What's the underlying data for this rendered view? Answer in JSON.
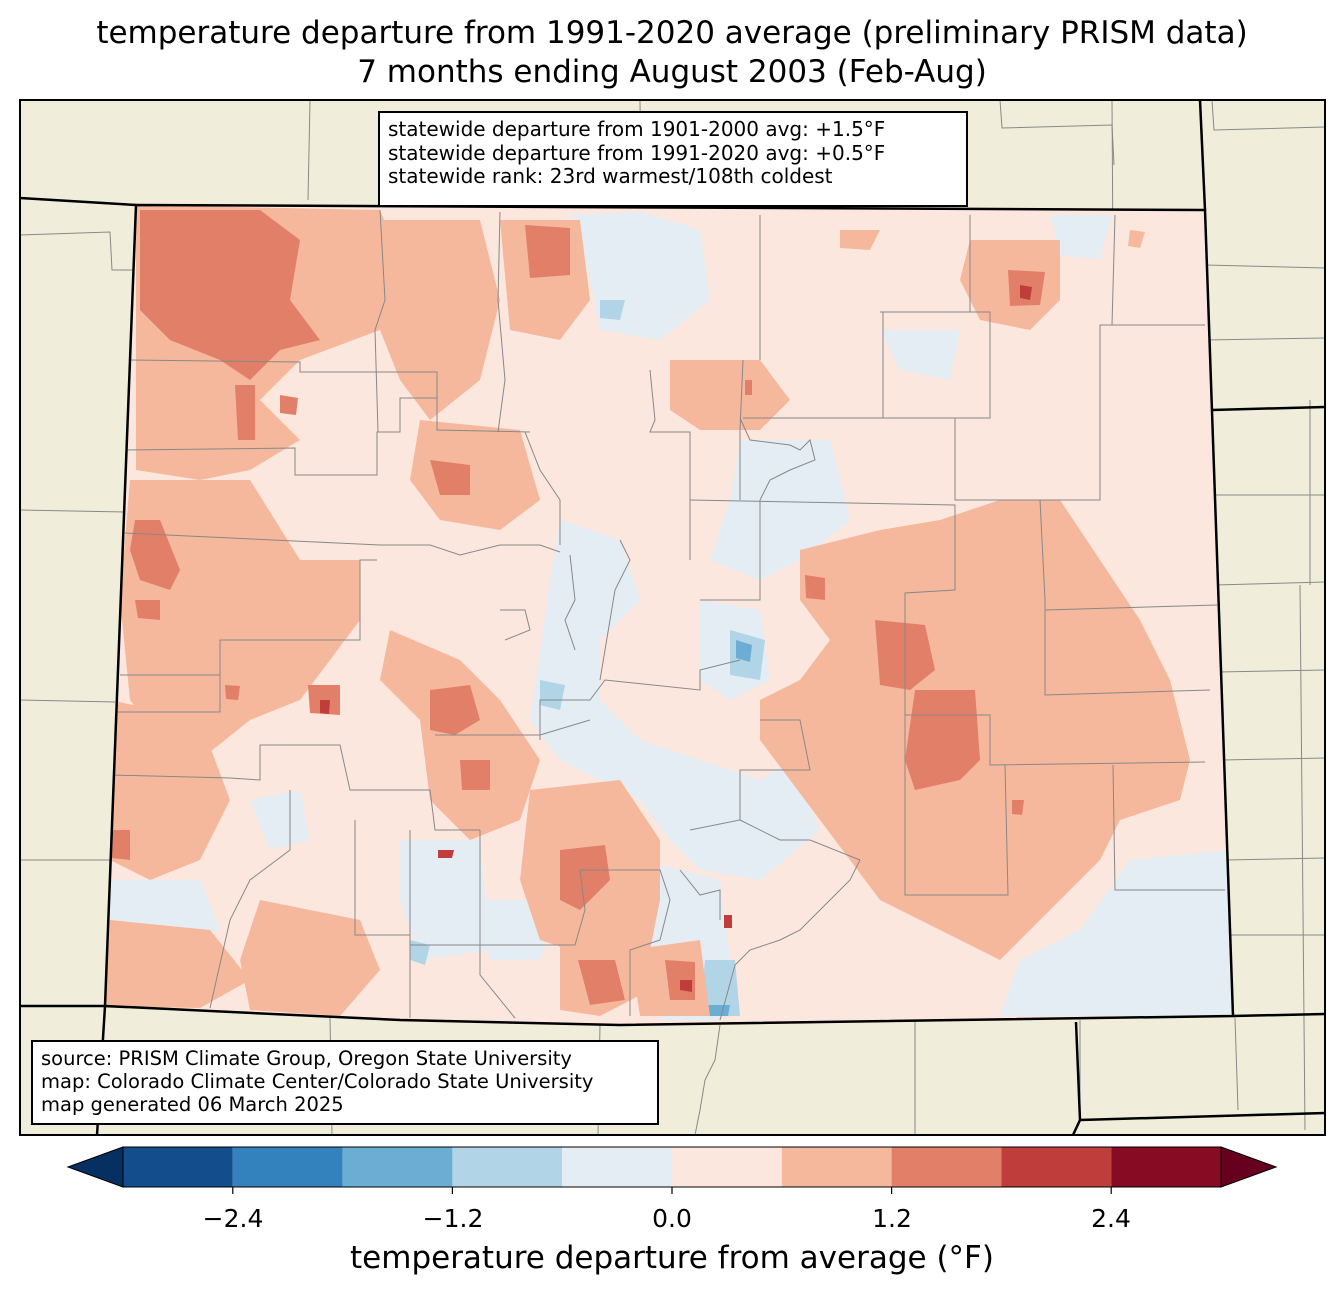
{
  "title": {
    "line1": "temperature departure from 1991-2020 average (preliminary PRISM data)",
    "line2": "7 months ending August 2003 (Feb-Aug)"
  },
  "stats": {
    "departure_1901_2000": "statewide departure from 1901-2000 avg: +1.5°F",
    "departure_1991_2020": "statewide departure from 1991-2020 avg: +0.5°F",
    "rank": "statewide rank: 23rd warmest/108th coldest"
  },
  "credits": {
    "source": "source: PRISM Climate Group, Oregon State University",
    "map": "map: Colorado Climate Center/Colorado State University",
    "generated": "map generated 06 March 2025"
  },
  "colorbar": {
    "label": "temperature departure from average (°F)",
    "ticks": [
      "−2.4",
      "−1.2",
      "0.0",
      "1.2",
      "2.4"
    ],
    "bin_edges": [
      -3.0,
      -2.4,
      -1.8,
      -1.2,
      -0.6,
      0.0,
      0.6,
      1.2,
      1.8,
      2.4,
      3.0
    ],
    "colors": [
      "#053061",
      "#144d8c",
      "#3482bd",
      "#6caed3",
      "#b1d4e7",
      "#e4edf4",
      "#fbe7de",
      "#f6b89c",
      "#e27f69",
      "#bf3d3a",
      "#880b24",
      "#67001f"
    ]
  },
  "map_colors": {
    "ocean_land": "#f0eedb",
    "neutral": "#fbe7de",
    "light_warm": "#f6b89c",
    "warm": "#e27f69",
    "hot": "#bf3d3a",
    "light_cool": "#e4edf4",
    "cool": "#b1d4e7",
    "cooler": "#6caed3"
  }
}
